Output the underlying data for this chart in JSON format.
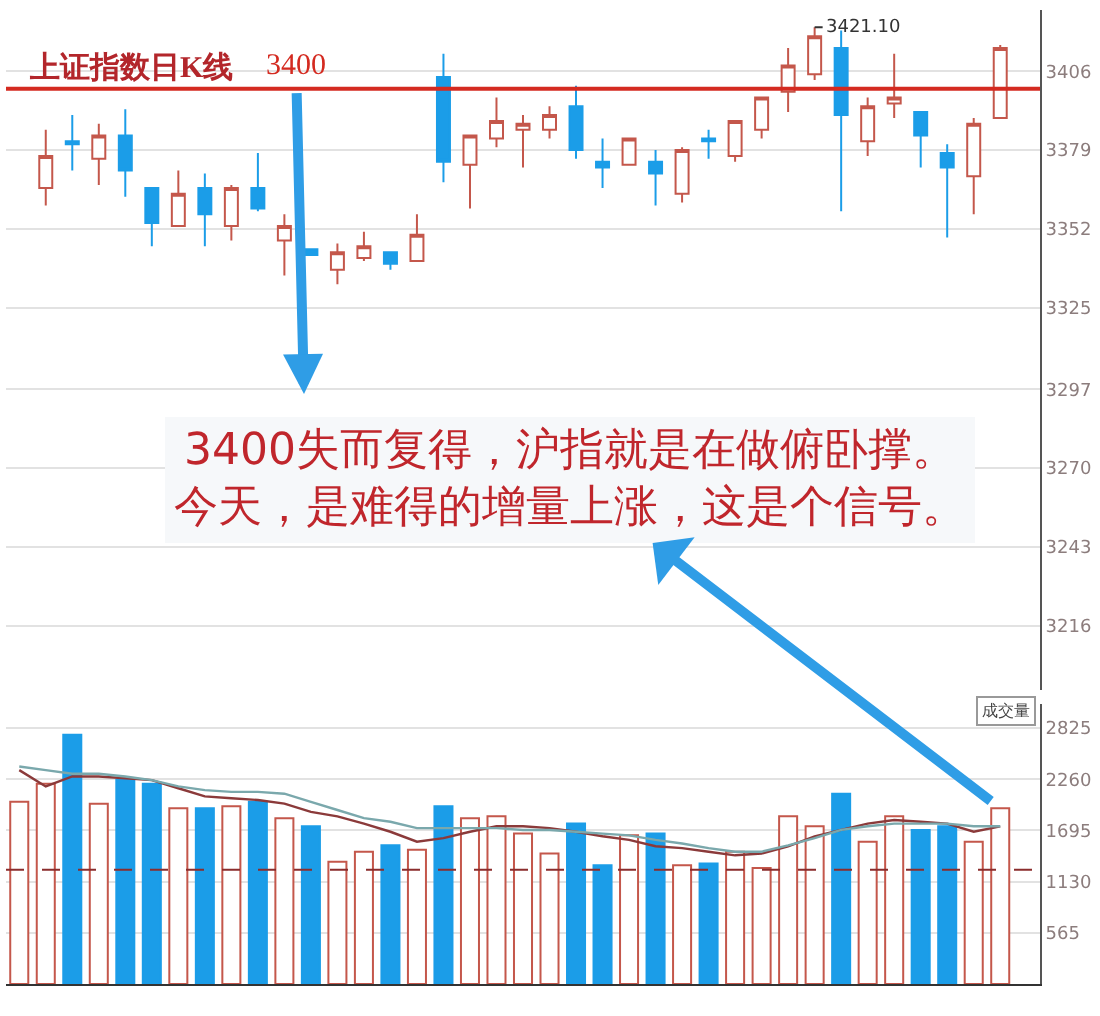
{
  "chart_data": [
    {
      "type": "candlestick",
      "title": "上证指数日K线",
      "categories": [
        null,
        null,
        null,
        null,
        null,
        null,
        null,
        null,
        null,
        null,
        null,
        null,
        null,
        null,
        null,
        null,
        null,
        null,
        null,
        null,
        null,
        null,
        null,
        null,
        null,
        null,
        null,
        null,
        null,
        null,
        null,
        null,
        null,
        null,
        null,
        null,
        null,
        null,
        null
      ],
      "ohlc": [
        null,
        [
          3366,
          3386,
          3360,
          3377
        ],
        [
          3382,
          3391,
          3372,
          3381
        ],
        [
          3376,
          3388,
          3367,
          3384
        ],
        [
          3384,
          3393,
          3363,
          3372
        ],
        [
          3366,
          3366,
          3346,
          3354
        ],
        [
          3353,
          3372,
          3353,
          3364
        ],
        [
          3366,
          3371,
          3346,
          3357
        ],
        [
          3353,
          3367,
          3348,
          3366
        ],
        [
          3366,
          3378,
          3358,
          3359
        ],
        [
          3348,
          3357,
          3336,
          3353
        ],
        [
          3345,
          3345,
          3343,
          3343
        ],
        [
          3338,
          3347,
          3333,
          3344
        ],
        [
          3342,
          3351,
          3341,
          3346
        ],
        [
          3344,
          3344,
          3338,
          3340
        ],
        [
          3341,
          3357,
          3341,
          3350
        ],
        [
          3404,
          3412,
          3368,
          3375
        ],
        [
          3374,
          3384,
          3359,
          3384
        ],
        [
          3383,
          3397,
          3380,
          3389
        ],
        [
          3386,
          3391,
          3373,
          3388
        ],
        [
          3386,
          3394,
          3383,
          3391
        ],
        [
          3394,
          3401,
          3376,
          3379
        ],
        [
          3375,
          3383,
          3366,
          3373
        ],
        [
          3374,
          3383,
          3374,
          3383
        ],
        [
          3375,
          3379,
          3360,
          3371
        ],
        [
          3364,
          3380,
          3361,
          3379
        ],
        [
          3383,
          3386,
          3376,
          3382
        ],
        [
          3377,
          3389,
          3375,
          3389
        ],
        [
          3386,
          3397,
          3383,
          3397
        ],
        [
          3399,
          3414,
          3392,
          3408
        ],
        [
          3405,
          3421.1,
          3403,
          3418
        ],
        [
          3414,
          3420,
          3358,
          3391
        ],
        [
          3382,
          3397,
          3377,
          3394
        ],
        [
          3395,
          3412,
          3390,
          3397
        ],
        [
          3392,
          3392,
          3373,
          3384
        ],
        [
          3378,
          3381,
          3349,
          3373
        ],
        [
          3370,
          3390,
          3357,
          3388
        ],
        [
          3390,
          3415,
          3390,
          3414
        ],
        null
      ],
      "colors": [
        null,
        "#c4574b",
        "#1b9de8",
        "#c4574b",
        "#1b9de8",
        "#1b9de8",
        "#c4574b",
        "#1b9de8",
        "#c4574b",
        "#1b9de8",
        "#c4574b",
        "#1b9de8",
        "#c4574b",
        "#c4574b",
        "#1b9de8",
        "#c4574b",
        "#1b9de8",
        "#c4574b",
        "#c4574b",
        "#c4574b",
        "#c4574b",
        "#1b9de8",
        "#1b9de8",
        "#c4574b",
        "#1b9de8",
        "#c4574b",
        "#1b9de8",
        "#c4574b",
        "#c4574b",
        "#c4574b",
        "#c4574b",
        "#1b9de8",
        "#c4574b",
        "#c4574b",
        "#1b9de8",
        "#1b9de8",
        "#c4574b",
        "#c4574b",
        null
      ],
      "ylim": [
        3194,
        3427
      ],
      "yticks": [
        3216,
        3243,
        3270,
        3297,
        3325,
        3352,
        3379,
        3406
      ],
      "ref_lines": [
        {
          "axis": "y",
          "value": 3400,
          "label": "3400",
          "color": "#d42a20"
        }
      ],
      "annotations": [
        "3421.10",
        "3400失而复得，沪指就是在做俯卧撑。今天，是难得的增量上涨，这是个信号。"
      ],
      "grid": "y"
    },
    {
      "type": "bar",
      "title": "成交量",
      "categories": [
        null,
        null,
        null,
        null,
        null,
        null,
        null,
        null,
        null,
        null,
        null,
        null,
        null,
        null,
        null,
        null,
        null,
        null,
        null,
        null,
        null,
        null,
        null,
        null,
        null,
        null,
        null,
        null,
        null,
        null,
        null,
        null,
        null,
        null,
        null,
        null,
        null,
        null,
        null
      ],
      "series": [
        {
          "values": [
            2010,
            2210,
            2750,
            1990,
            2250,
            2210,
            1940,
            1940,
            1960,
            2010,
            1830,
            1740,
            1350,
            1460,
            1530,
            1480,
            1960,
            1830,
            1850,
            1660,
            1440,
            1770,
            1310,
            1640,
            1660,
            1310,
            1330,
            1460,
            1280,
            1850,
            1740,
            2100,
            1570,
            1850,
            1700,
            1740,
            1570,
            1940,
            null
          ],
          "colors": [
            "#c4574b",
            "#c4574b",
            "#1b9de8",
            "#c4574b",
            "#1b9de8",
            "#1b9de8",
            "#c4574b",
            "#1b9de8",
            "#c4574b",
            "#1b9de8",
            "#c4574b",
            "#1b9de8",
            "#c4574b",
            "#c4574b",
            "#1b9de8",
            "#c4574b",
            "#1b9de8",
            "#c4574b",
            "#c4574b",
            "#c4574b",
            "#c4574b",
            "#1b9de8",
            "#1b9de8",
            "#c4574b",
            "#1b9de8",
            "#c4574b",
            "#1b9de8",
            "#c4574b",
            "#c4574b",
            "#c4574b",
            "#c4574b",
            "#1b9de8",
            "#c4574b",
            "#c4574b",
            "#1b9de8",
            "#1b9de8",
            "#c4574b",
            "#c4574b",
            null
          ]
        },
        {
          "type": "line",
          "color": "#8b3a3a",
          "values": [
            2360,
            2180,
            2290,
            2290,
            2270,
            2250,
            2160,
            2070,
            2050,
            2030,
            1990,
            1900,
            1850,
            1770,
            1680,
            1570,
            1610,
            1680,
            1740,
            1740,
            1720,
            1680,
            1630,
            1590,
            1520,
            1500,
            1460,
            1420,
            1440,
            1520,
            1630,
            1700,
            1770,
            1810,
            1790,
            1770,
            1680,
            1740,
            null
          ]
        },
        {
          "type": "line",
          "color": "#7aa8ac",
          "values": [
            2400,
            2360,
            2320,
            2320,
            2290,
            2250,
            2180,
            2140,
            2120,
            2120,
            2100,
            2010,
            1920,
            1830,
            1790,
            1720,
            1720,
            1720,
            1720,
            1700,
            1700,
            1680,
            1660,
            1640,
            1590,
            1550,
            1500,
            1460,
            1460,
            1530,
            1610,
            1700,
            1740,
            1770,
            1770,
            1770,
            1740,
            1740,
            null
          ]
        }
      ],
      "ylim": [
        0,
        3090
      ],
      "yticks": [
        565,
        1130,
        1695,
        2260,
        2825
      ],
      "ref_lines": [
        {
          "axis": "y",
          "value": 1260,
          "color": "#8b2d2d",
          "line_style": "dashed"
        }
      ],
      "grid": "y"
    }
  ]
}
